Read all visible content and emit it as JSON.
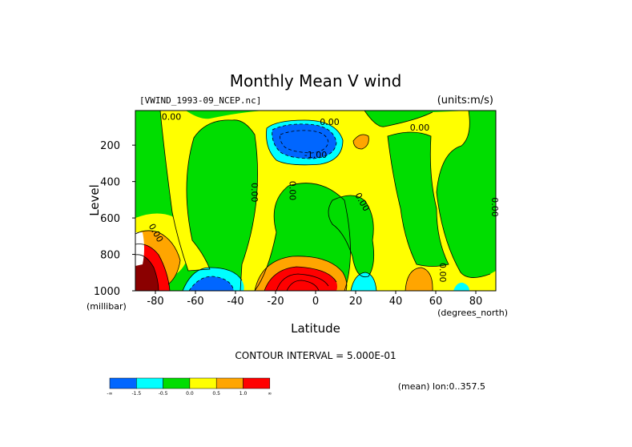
{
  "chart_data": {
    "type": "heatmap",
    "title": "Monthly Mean V wind",
    "file_label": "[VWIND_1993-09_NCEP.nc]",
    "units_label": "(units:m/s)",
    "xlabel": "Latitude",
    "x_units": "(degrees_north)",
    "ylabel": "Level",
    "y_units": "(millibar)",
    "xlim": [
      -90,
      90
    ],
    "ylim": [
      1000,
      10
    ],
    "x_ticks": [
      -80,
      -60,
      -40,
      -20,
      0,
      20,
      40,
      60,
      80
    ],
    "x_tick_labels": [
      "-80",
      "-60",
      "-40",
      "-20",
      "0",
      "20",
      "40",
      "60",
      "80"
    ],
    "y_ticks": [
      200,
      400,
      600,
      800,
      1000
    ],
    "y_tick_labels": [
      "200",
      "400",
      "600",
      "800",
      "1000"
    ],
    "contour_interval_text": "CONTOUR INTERVAL = 5.000E-01",
    "contour_labels": [
      {
        "text": "0.00",
        "lat": -72,
        "lev": 60
      },
      {
        "text": "0.00",
        "lat": 7,
        "lev": 90
      },
      {
        "text": "0.00",
        "lat": 52,
        "lev": 120
      },
      {
        "text": "-1.00",
        "lat": 0,
        "lev": 270
      },
      {
        "text": "0.00",
        "lat": -32,
        "lev": 460
      },
      {
        "text": "0.00",
        "lat": -13,
        "lev": 450
      },
      {
        "text": "0.00",
        "lat": 22,
        "lev": 520
      },
      {
        "text": "0.00",
        "lat": 88,
        "lev": 540
      },
      {
        "text": "0.00",
        "lat": -81,
        "lev": 690
      },
      {
        "text": "0.00",
        "lat": 62,
        "lev": 900
      }
    ],
    "colorbar": {
      "levels": [
        "-1.5",
        "-0.5",
        "0.0",
        "0.5",
        "1.0"
      ],
      "colors": [
        "#0066ff",
        "#00ffff",
        "#00dd00",
        "#ffff00",
        "#ffa500",
        "#ff0000"
      ]
    },
    "footer_text": "(mean) lon:0..357.5",
    "fill_colors": {
      "blue": "#0066ff",
      "cyan": "#00ffff",
      "green": "#00dd00",
      "yellow": "#ffff00",
      "orange": "#ffa500",
      "red": "#ff0000",
      "darkred": "#8b0000"
    }
  }
}
